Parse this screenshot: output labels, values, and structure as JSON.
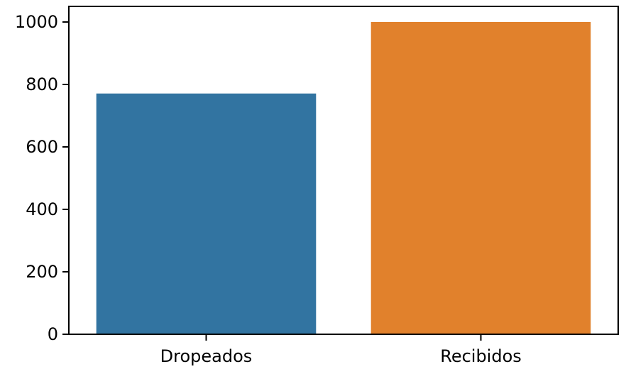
{
  "chart_data": {
    "type": "bar",
    "title": "",
    "xlabel": "",
    "ylabel": "",
    "categories": [
      "Dropeados",
      "Recibidos"
    ],
    "values": [
      771,
      1000
    ],
    "colors": [
      "#3274a1",
      "#e1812c"
    ],
    "ylim": [
      0,
      1050
    ],
    "yticks": [
      0,
      200,
      400,
      600,
      800,
      1000
    ],
    "grid": false,
    "legend": "none"
  }
}
